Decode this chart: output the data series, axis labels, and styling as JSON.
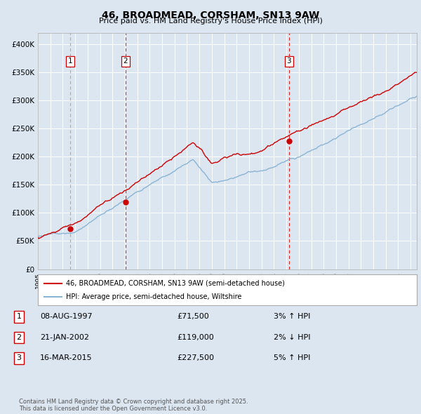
{
  "title": "46, BROADMEAD, CORSHAM, SN13 9AW",
  "subtitle": "Price paid vs. HM Land Registry's House Price Index (HPI)",
  "legend_label_red": "46, BROADMEAD, CORSHAM, SN13 9AW (semi-detached house)",
  "legend_label_blue": "HPI: Average price, semi-detached house, Wiltshire",
  "transactions": [
    {
      "num": 1,
      "date": "08-AUG-1997",
      "price": 71500,
      "pct": "3%",
      "dir": "↑"
    },
    {
      "num": 2,
      "date": "21-JAN-2002",
      "price": 119000,
      "pct": "2%",
      "dir": "↓"
    },
    {
      "num": 3,
      "date": "16-MAR-2015",
      "price": 227500,
      "pct": "5%",
      "dir": "↑"
    }
  ],
  "transaction_years": [
    1997.6,
    2002.05,
    2015.2
  ],
  "transaction_prices": [
    71500,
    119000,
    227500
  ],
  "yticks": [
    0,
    50000,
    100000,
    150000,
    200000,
    250000,
    300000,
    350000,
    400000
  ],
  "ytick_labels": [
    "£0",
    "£50K",
    "£100K",
    "£150K",
    "£200K",
    "£250K",
    "£300K",
    "£350K",
    "£400K"
  ],
  "background_color": "#dce6f1",
  "plot_bg_color": "#dce6f1",
  "grid_color": "#ffffff",
  "red_line_color": "#cc0000",
  "blue_line_color": "#8ab4d4",
  "dot_color": "#cc0000",
  "footnote": "Contains HM Land Registry data © Crown copyright and database right 2025.\nThis data is licensed under the Open Government Licence v3.0.",
  "start_year": 1995.0,
  "end_year": 2025.5,
  "ylim": [
    0,
    420000
  ]
}
